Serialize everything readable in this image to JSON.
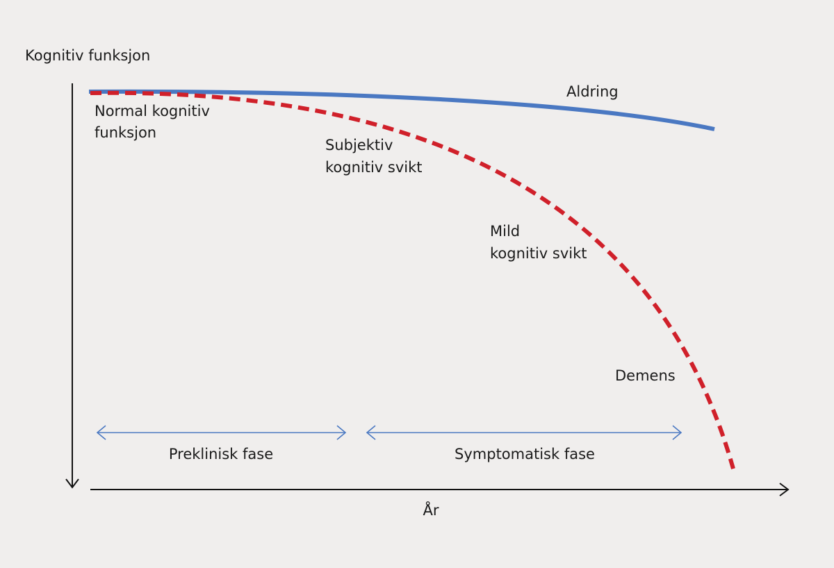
{
  "axes": {
    "y_label": "Kognitiv funksjon",
    "x_label": "År"
  },
  "curves": {
    "aging": "Aldring"
  },
  "stages": [
    {
      "lines": [
        "Normal kognitiv",
        "funksjon"
      ]
    },
    {
      "lines": [
        "Subjektiv",
        "kognitiv svikt"
      ]
    },
    {
      "lines": [
        "Mild",
        "kognitiv svikt"
      ]
    },
    {
      "lines": [
        "Demens"
      ]
    }
  ],
  "phases": [
    "Preklinisk fase",
    "Symptomatisk fase"
  ]
}
